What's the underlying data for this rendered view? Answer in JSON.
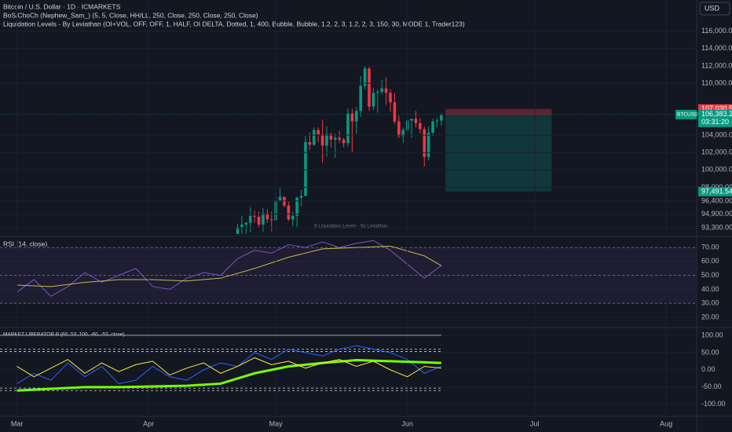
{
  "chart_data": [
    {
      "type": "candlestick",
      "title": "Bitcoin / U.S. Dollar · 1D · ICMARKETS",
      "indicators": [
        "BoS/ChoCh (Nephew_Sam_) (5, 5, Close, HH/LL, 250, Close, 250, Close, 250, Close)",
        "Liquidation Levels - By Leviathan (OI+VOL, OFF, OFF, 1, HALF, OI DELTA, Dotted, 1, 400, Bubble, Bubble, 1.2, 2, 3, 1.2, 2, 3, 150, 30, MODE 1, Trader123)"
      ],
      "watermark": "B Liquidation Levels - By Leviathan",
      "currency": "USD",
      "up_color": "#089981",
      "down_color": "#f23645",
      "xlim": [
        -4,
        160
      ],
      "ylim": [
        92600,
        119600
      ],
      "yticks": [
        {
          "value": 116000,
          "label": "116,000.00"
        },
        {
          "value": 114000,
          "label": "114,000.00"
        },
        {
          "value": 112000,
          "label": "112,000.00"
        },
        {
          "value": 110000,
          "label": "110,000.00"
        },
        {
          "value": 104000,
          "label": "104,000.00"
        },
        {
          "value": 102000,
          "label": "102,000.00"
        },
        {
          "value": 100000,
          "label": "100,000.00"
        },
        {
          "value": 98000,
          "label": "98,000.00"
        },
        {
          "value": 96400,
          "label": "96,400.00"
        },
        {
          "value": 94900,
          "label": "94,900.00"
        },
        {
          "value": 93300,
          "label": "93,300.00"
        }
      ],
      "x": [
        52,
        53,
        54,
        55,
        56,
        57,
        58,
        59,
        60,
        61,
        62,
        63,
        64,
        65,
        66,
        67,
        68,
        69,
        70,
        71,
        72,
        73,
        74,
        75,
        76,
        77,
        78,
        79,
        80,
        81,
        82,
        83,
        84,
        85,
        86,
        87,
        88,
        89,
        90,
        91,
        92,
        93,
        94,
        95,
        96,
        97,
        98,
        99,
        100
      ],
      "open": [
        87500,
        93400,
        93700,
        93900,
        94700,
        94600,
        93700,
        95000,
        94300,
        94200,
        96500,
        96900,
        95900,
        94300,
        94700,
        96800,
        97000,
        103200,
        102900,
        104600,
        104100,
        102800,
        104100,
        103500,
        103700,
        103500,
        103100,
        106500,
        105600,
        106800,
        109700,
        111700,
        107300,
        108900,
        109000,
        109400,
        108900,
        107800,
        105600,
        103900,
        104600,
        105700,
        105900,
        105400,
        104700,
        101500,
        104300,
        105600,
        105700
      ],
      "high": [
        93800,
        94700,
        94000,
        95700,
        95300,
        95200,
        95600,
        95500,
        95200,
        97400,
        97900,
        96900,
        96300,
        95200,
        96900,
        97700,
        103900,
        104300,
        104900,
        104900,
        105800,
        105000,
        104300,
        104200,
        104500,
        103700,
        107100,
        107100,
        107300,
        110800,
        112000,
        111900,
        109500,
        109300,
        110400,
        110700,
        109300,
        108900,
        106300,
        104900,
        105900,
        105900,
        106800,
        106000,
        105000,
        105000,
        105900,
        106000,
        106500
      ],
      "low": [
        87100,
        92000,
        91700,
        92800,
        93900,
        93400,
        92900,
        93900,
        92900,
        94100,
        96300,
        95700,
        94100,
        93500,
        93400,
        95800,
        97000,
        102300,
        102800,
        103200,
        100800,
        101500,
        102600,
        101400,
        103100,
        102600,
        102700,
        102000,
        104200,
        106100,
        109300,
        106800,
        106900,
        106600,
        108700,
        107500,
        106700,
        105300,
        103700,
        103100,
        103900,
        103700,
        104900,
        104200,
        100400,
        101100,
        103900,
        104900,
        105100
      ],
      "close": [
        93400,
        93700,
        93900,
        94700,
        94600,
        93700,
        95000,
        94300,
        94200,
        96500,
        96900,
        95900,
        94300,
        94700,
        96800,
        97000,
        103200,
        102900,
        104600,
        104100,
        102800,
        104100,
        103500,
        103700,
        103500,
        103100,
        106500,
        105600,
        106800,
        109700,
        111700,
        107300,
        108900,
        109000,
        109400,
        108900,
        107800,
        105600,
        103900,
        104600,
        105700,
        105900,
        105400,
        104700,
        101500,
        104300,
        105600,
        105700,
        106300
      ],
      "position": {
        "start": 101,
        "end": 126,
        "stop": {
          "value": 107030.52,
          "label": "107,030.52",
          "color": "#f23645"
        },
        "entry": {
          "value": 106306.34,
          "label": "106,306.34",
          "color": "#434651"
        },
        "target": {
          "value": 97491.54,
          "label": "97,491.54",
          "color": "#089981"
        }
      },
      "last_price": {
        "symbol": "BTCUSD",
        "value": 106383.29,
        "label": "106,383.29",
        "countdown": "03:31:20",
        "color": "#089981"
      }
    },
    {
      "type": "line",
      "title": "RSI (14, close)",
      "xlim": [
        -4,
        160
      ],
      "ylim": [
        13.75,
        76.25
      ],
      "yticks": [
        {
          "value": 70,
          "label": "70.00"
        },
        {
          "value": 60,
          "label": "60.00"
        },
        {
          "value": 50,
          "label": "50.00"
        },
        {
          "value": 40,
          "label": "40.00"
        },
        {
          "value": 30,
          "label": "30.00"
        },
        {
          "value": 20,
          "label": "20.00"
        }
      ],
      "band": [
        30,
        70
      ],
      "levels": [
        70,
        50,
        30
      ],
      "series": [
        {
          "color": "#7e57c2",
          "x": [
            0,
            4,
            8,
            12,
            16,
            20,
            24,
            28,
            32,
            36,
            40,
            44,
            48,
            52,
            56,
            60,
            64,
            68,
            72,
            76,
            80,
            84,
            88,
            92,
            96,
            100
          ],
          "values": [
            38,
            47,
            35,
            42,
            52,
            45,
            50,
            55,
            42,
            40,
            48,
            52,
            50,
            62,
            68,
            66,
            72,
            70,
            74,
            70,
            73,
            75,
            68,
            58,
            48,
            57
          ]
        },
        {
          "color": "#c9b84b",
          "x": [
            0,
            8,
            16,
            24,
            32,
            40,
            48,
            56,
            64,
            72,
            80,
            88,
            96,
            100
          ],
          "values": [
            43,
            42,
            45,
            47,
            47,
            46,
            48,
            55,
            63,
            69,
            70,
            71,
            64,
            57
          ]
        }
      ]
    },
    {
      "type": "line",
      "title": "MARKET LIBERATOR B (60, 53, 100, -60, -53, close)",
      "xlim": [
        -4,
        160
      ],
      "ylim": [
        -130,
        118
      ],
      "yticks": [
        {
          "value": 100,
          "label": "100.00"
        },
        {
          "value": 50,
          "label": "50.00"
        },
        {
          "value": 0,
          "label": "0.00"
        },
        {
          "value": -50,
          "label": "-50.00"
        },
        {
          "value": -100,
          "label": "-100.00"
        }
      ],
      "levels": [
        100,
        60,
        53,
        -53,
        -60
      ],
      "series": [
        {
          "color": "#2962ff",
          "x": [
            0,
            4,
            8,
            12,
            16,
            20,
            24,
            28,
            32,
            36,
            40,
            44,
            48,
            52,
            56,
            60,
            64,
            68,
            72,
            76,
            80,
            84,
            88,
            92,
            96,
            100
          ],
          "values": [
            -40,
            -10,
            -30,
            20,
            -20,
            10,
            -40,
            -30,
            10,
            -20,
            -30,
            0,
            20,
            10,
            50,
            30,
            60,
            50,
            40,
            60,
            70,
            60,
            50,
            30,
            -10,
            10
          ]
        },
        {
          "color": "#76ff03",
          "x": [
            0,
            8,
            16,
            24,
            32,
            40,
            48,
            56,
            64,
            72,
            80,
            88,
            96,
            100
          ],
          "values": [
            -60,
            -55,
            -50,
            -50,
            -48,
            -46,
            -40,
            -10,
            10,
            20,
            28,
            25,
            22,
            20
          ]
        },
        {
          "color": "#ffeb3b",
          "x": [
            0,
            4,
            8,
            12,
            16,
            20,
            24,
            28,
            32,
            36,
            40,
            44,
            48,
            52,
            56,
            60,
            64,
            68,
            72,
            76,
            80,
            84,
            88,
            92,
            96,
            100
          ],
          "values": [
            10,
            -20,
            5,
            30,
            -10,
            20,
            -5,
            15,
            25,
            -15,
            5,
            20,
            -10,
            10,
            35,
            15,
            25,
            5,
            20,
            30,
            10,
            25,
            0,
            -20,
            10,
            5
          ]
        }
      ],
      "xticks": [
        {
          "value": 0,
          "label": "Mar"
        },
        {
          "value": 31,
          "label": "Apr"
        },
        {
          "value": 61,
          "label": "May"
        },
        {
          "value": 92,
          "label": "Jun"
        },
        {
          "value": 122,
          "label": "Jul"
        },
        {
          "value": 153,
          "label": "Aug"
        }
      ]
    }
  ]
}
